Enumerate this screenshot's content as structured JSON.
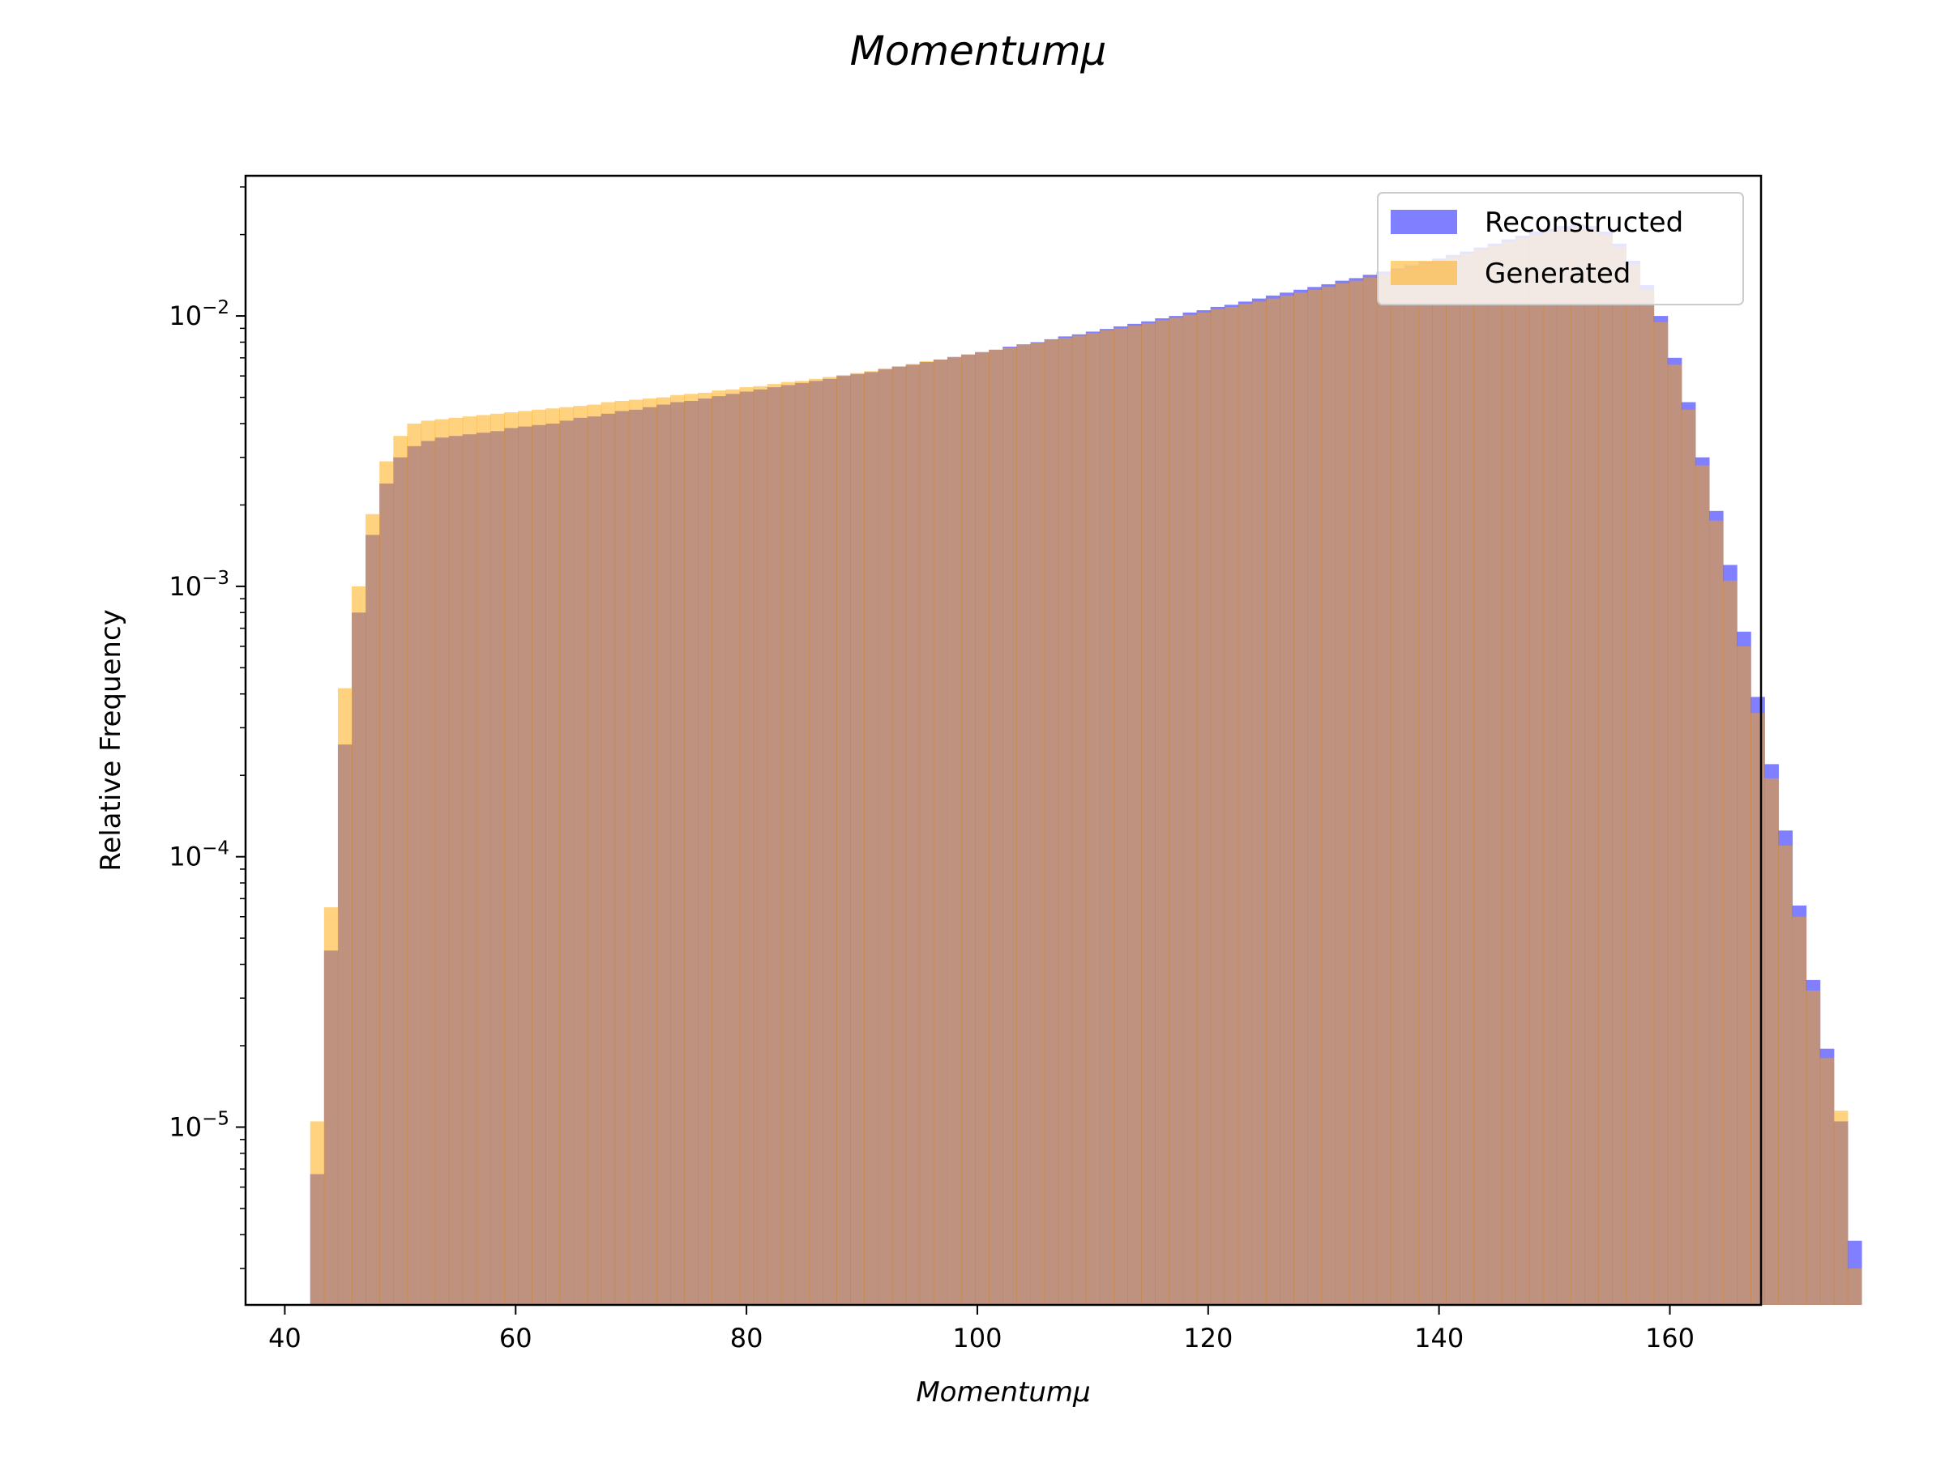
{
  "chart_data": {
    "type": "histogram",
    "title": "Momentumμ",
    "xlabel": "Momentumμ",
    "ylabel": "Relative Frequency",
    "xlim": [
      36.6,
      167.9
    ],
    "ylim": [
      2.2e-06,
      0.033
    ],
    "yscale": "log",
    "grid": false,
    "legend_position": "top-right",
    "x_ticks": [
      40,
      60,
      80,
      100,
      120,
      140,
      160
    ],
    "y_ticks": [
      {
        "value": 1e-05,
        "base": "10",
        "exp": "−5"
      },
      {
        "value": 0.0001,
        "base": "10",
        "exp": "−4"
      },
      {
        "value": 0.001,
        "base": "10",
        "exp": "−3"
      },
      {
        "value": 0.01,
        "base": "10",
        "exp": "−2"
      }
    ],
    "bin_start": 42.2,
    "bin_width": 1.2,
    "series": [
      {
        "name": "Reconstructed",
        "color": "#0000ff",
        "alpha": 0.5,
        "values": [
          6.7e-06,
          4.5e-05,
          0.00026,
          0.0008,
          0.00155,
          0.0024,
          0.003,
          0.0033,
          0.00345,
          0.00355,
          0.0036,
          0.00365,
          0.0037,
          0.00375,
          0.00385,
          0.0039,
          0.00395,
          0.004,
          0.0041,
          0.0042,
          0.00425,
          0.00435,
          0.00445,
          0.0045,
          0.0046,
          0.0047,
          0.0048,
          0.00485,
          0.00495,
          0.00505,
          0.00515,
          0.00525,
          0.00535,
          0.00545,
          0.00555,
          0.00565,
          0.00575,
          0.00585,
          0.006,
          0.0061,
          0.0062,
          0.00635,
          0.0065,
          0.0066,
          0.00675,
          0.0069,
          0.00705,
          0.0072,
          0.00735,
          0.0075,
          0.0077,
          0.00785,
          0.008,
          0.0082,
          0.0084,
          0.00855,
          0.00875,
          0.00895,
          0.00915,
          0.00935,
          0.00955,
          0.0098,
          0.01,
          0.0103,
          0.0105,
          0.0108,
          0.011,
          0.0113,
          0.0116,
          0.0119,
          0.0122,
          0.0125,
          0.0128,
          0.0131,
          0.0135,
          0.0138,
          0.0142,
          0.0146,
          0.015,
          0.0154,
          0.0159,
          0.0163,
          0.0168,
          0.0173,
          0.0179,
          0.0185,
          0.0192,
          0.0198,
          0.0205,
          0.021,
          0.0215,
          0.0218,
          0.0215,
          0.0205,
          0.0185,
          0.016,
          0.013,
          0.01,
          0.007,
          0.0048,
          0.003,
          0.0019,
          0.0012,
          0.00068,
          0.00039,
          0.00022,
          0.000125,
          6.6e-05,
          3.5e-05,
          1.95e-05,
          1.05e-05,
          3.8e-06
        ]
      },
      {
        "name": "Generated",
        "color": "#ffa500",
        "alpha": 0.5,
        "values": [
          1.05e-05,
          6.5e-05,
          0.00042,
          0.001,
          0.00185,
          0.0029,
          0.0036,
          0.004,
          0.0041,
          0.00415,
          0.0042,
          0.00425,
          0.0043,
          0.00435,
          0.0044,
          0.00445,
          0.0045,
          0.00455,
          0.0046,
          0.00465,
          0.0047,
          0.0048,
          0.00485,
          0.0049,
          0.00495,
          0.005,
          0.0051,
          0.00515,
          0.0052,
          0.0053,
          0.00535,
          0.00545,
          0.0055,
          0.0056,
          0.0057,
          0.00575,
          0.00585,
          0.00595,
          0.00605,
          0.00615,
          0.00625,
          0.0064,
          0.0065,
          0.00665,
          0.0068,
          0.0069,
          0.00705,
          0.0072,
          0.00735,
          0.0075,
          0.00765,
          0.0078,
          0.00795,
          0.00815,
          0.0083,
          0.00845,
          0.00865,
          0.00885,
          0.009,
          0.0092,
          0.0094,
          0.00965,
          0.00985,
          0.0101,
          0.0103,
          0.0106,
          0.0108,
          0.0111,
          0.0113,
          0.0116,
          0.0119,
          0.0122,
          0.0125,
          0.0128,
          0.0132,
          0.0135,
          0.0139,
          0.0143,
          0.0147,
          0.0151,
          0.0156,
          0.016,
          0.0165,
          0.017,
          0.0176,
          0.0182,
          0.0188,
          0.0194,
          0.02,
          0.0205,
          0.021,
          0.0213,
          0.021,
          0.02,
          0.018,
          0.0155,
          0.0125,
          0.0095,
          0.0066,
          0.0045,
          0.0028,
          0.00175,
          0.00105,
          0.0006,
          0.00034,
          0.000195,
          0.00011,
          6e-05,
          3.2e-05,
          1.8e-05,
          1.15e-05,
          3e-06
        ]
      }
    ]
  }
}
